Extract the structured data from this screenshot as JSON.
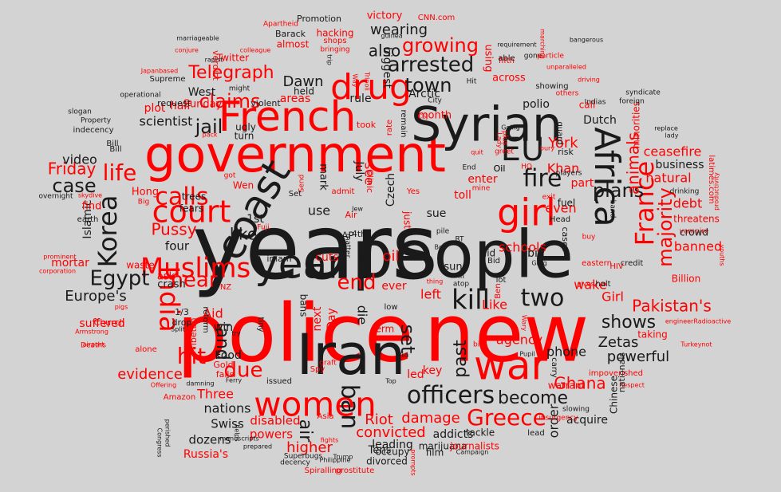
{
  "colors": {
    "background": "#d3d3d3",
    "red": "#ff0000",
    "black": "#1a1a1a"
  },
  "words": [
    {
      "text": "years",
      "color": "black"
    },
    {
      "text": "police",
      "color": "red"
    },
    {
      "text": "new",
      "color": "red"
    },
    {
      "text": "people",
      "color": "black"
    },
    {
      "text": "government",
      "color": "red"
    },
    {
      "text": "Iran",
      "color": "black"
    },
    {
      "text": "Syrian",
      "color": "black"
    },
    {
      "text": "French",
      "color": "red"
    },
    {
      "text": "drug",
      "color": "red"
    },
    {
      "text": "war",
      "color": "red"
    },
    {
      "text": "women",
      "color": "red"
    },
    {
      "text": "year",
      "color": "black"
    },
    {
      "text": "court",
      "color": "red"
    },
    {
      "text": "Muslims",
      "color": "red"
    },
    {
      "text": "Africa",
      "color": "black"
    },
    {
      "text": "EU",
      "color": "black"
    },
    {
      "text": "girl",
      "color": "red"
    },
    {
      "text": "France",
      "color": "red"
    },
    {
      "text": "kill",
      "color": "black"
    },
    {
      "text": "officers",
      "color": "black"
    },
    {
      "text": "Greece",
      "color": "red"
    },
    {
      "text": "India",
      "color": "red"
    },
    {
      "text": "coast",
      "color": "black"
    },
    {
      "text": "fire",
      "color": "black"
    },
    {
      "text": "two",
      "color": "black"
    },
    {
      "text": "ban",
      "color": "black"
    },
    {
      "text": "Korea",
      "color": "black"
    },
    {
      "text": "calls",
      "color": "red"
    },
    {
      "text": "life",
      "color": "red"
    },
    {
      "text": "case",
      "color": "black"
    },
    {
      "text": "arrested",
      "color": "black"
    },
    {
      "text": "growing",
      "color": "red"
    },
    {
      "text": "plans",
      "color": "black"
    },
    {
      "text": "town",
      "color": "black"
    },
    {
      "text": "Egypt",
      "color": "black"
    },
    {
      "text": "hit",
      "color": "red"
    },
    {
      "text": "end",
      "color": "red"
    },
    {
      "text": "near",
      "color": "red"
    },
    {
      "text": "due",
      "color": "red"
    },
    {
      "text": "jail",
      "color": "black"
    },
    {
      "text": "claims",
      "color": "red"
    },
    {
      "text": "Telegraph",
      "color": "red"
    },
    {
      "text": "majority",
      "color": "red"
    },
    {
      "text": "Pakistan's",
      "color": "red"
    },
    {
      "text": "shows",
      "color": "black"
    },
    {
      "text": "become",
      "color": "black"
    },
    {
      "text": "land",
      "color": "black"
    },
    {
      "text": "set",
      "color": "black"
    },
    {
      "text": "past",
      "color": "black"
    },
    {
      "text": "air",
      "color": "black"
    },
    {
      "text": "Friday",
      "color": "red"
    },
    {
      "text": "wearing",
      "color": "black"
    },
    {
      "text": "also",
      "color": "black"
    },
    {
      "text": "like",
      "color": "black"
    },
    {
      "text": "Europe's",
      "color": "black"
    },
    {
      "text": "Zetas",
      "color": "black"
    },
    {
      "text": "Pussy",
      "color": "red"
    },
    {
      "text": "animals",
      "color": "red"
    },
    {
      "text": "evidence",
      "color": "red"
    },
    {
      "text": "powerful",
      "color": "black"
    },
    {
      "text": "Ghana",
      "color": "red"
    },
    {
      "text": "damage",
      "color": "red"
    },
    {
      "text": "convicted",
      "color": "red"
    },
    {
      "text": "higher",
      "color": "red"
    },
    {
      "text": "nations",
      "color": "black"
    },
    {
      "text": "Riot",
      "color": "red"
    },
    {
      "text": "video",
      "color": "black"
    },
    {
      "text": "scientist",
      "color": "black"
    },
    {
      "text": "Dawn",
      "color": "black"
    },
    {
      "text": "wake",
      "color": "red"
    },
    {
      "text": "York",
      "color": "red"
    },
    {
      "text": "Khan",
      "color": "red"
    },
    {
      "text": "banned",
      "color": "red"
    },
    {
      "text": "ceasefire",
      "color": "red"
    },
    {
      "text": "natural",
      "color": "red"
    },
    {
      "text": "debt",
      "color": "red"
    },
    {
      "text": "business",
      "color": "black"
    },
    {
      "text": "even",
      "color": "red"
    },
    {
      "text": "part",
      "color": "red"
    },
    {
      "text": "schools",
      "color": "red"
    },
    {
      "text": "phone",
      "color": "black"
    },
    {
      "text": "agency",
      "color": "red"
    },
    {
      "text": "Girl",
      "color": "red"
    },
    {
      "text": "Like",
      "color": "red"
    },
    {
      "text": "Three",
      "color": "red"
    },
    {
      "text": "dozens",
      "color": "black"
    },
    {
      "text": "Swiss",
      "color": "black"
    },
    {
      "text": "disabled",
      "color": "red"
    },
    {
      "text": "powers",
      "color": "red"
    },
    {
      "text": "Russia's",
      "color": "red"
    },
    {
      "text": "leading",
      "color": "black"
    },
    {
      "text": "addicts",
      "color": "black"
    },
    {
      "text": "order",
      "color": "black"
    },
    {
      "text": "acquire",
      "color": "black"
    },
    {
      "text": "Food",
      "color": "black"
    },
    {
      "text": "Aid",
      "color": "red"
    },
    {
      "text": "win",
      "color": "black"
    },
    {
      "text": "left",
      "color": "red"
    },
    {
      "text": "ever",
      "color": "red"
    },
    {
      "text": "oil",
      "color": "red"
    },
    {
      "text": "cuts",
      "color": "red"
    },
    {
      "text": "use",
      "color": "black"
    },
    {
      "text": "sue",
      "color": "black"
    },
    {
      "text": "enter",
      "color": "red"
    },
    {
      "text": "toll",
      "color": "red"
    },
    {
      "text": "see",
      "color": "red"
    },
    {
      "text": "Czech",
      "color": "black"
    },
    {
      "text": "July",
      "color": "black"
    },
    {
      "text": "mark",
      "color": "black"
    },
    {
      "text": "1st",
      "color": "black"
    },
    {
      "text": "four",
      "color": "black"
    },
    {
      "text": "crash",
      "color": "black"
    },
    {
      "text": "ask",
      "color": "red"
    },
    {
      "text": "suffered",
      "color": "red"
    },
    {
      "text": "mortar",
      "color": "red"
    },
    {
      "text": "Islamic",
      "color": "black"
    },
    {
      "text": "Sunday",
      "color": "red"
    },
    {
      "text": "plot",
      "color": "red"
    },
    {
      "text": "half",
      "color": "red"
    },
    {
      "text": "areas",
      "color": "red"
    },
    {
      "text": "held",
      "color": "black"
    },
    {
      "text": "rule",
      "color": "black"
    },
    {
      "text": "West",
      "color": "black"
    },
    {
      "text": "Arctic",
      "color": "black"
    },
    {
      "text": "polio",
      "color": "black"
    },
    {
      "text": "Dutch",
      "color": "black"
    },
    {
      "text": "call",
      "color": "red"
    },
    {
      "text": "across",
      "color": "red"
    },
    {
      "text": "minorities",
      "color": "red"
    },
    {
      "text": "biggest",
      "color": "black"
    },
    {
      "text": "month",
      "color": "red"
    },
    {
      "text": "using",
      "color": "red"
    },
    {
      "text": "victory",
      "color": "red"
    },
    {
      "text": "hacking",
      "color": "red"
    },
    {
      "text": "almost",
      "color": "red"
    },
    {
      "text": "Barack",
      "color": "black"
    },
    {
      "text": "Twitter",
      "color": "red"
    },
    {
      "text": "verdict",
      "color": "red"
    },
    {
      "text": "Promotion",
      "color": "black"
    },
    {
      "text": "CNN.com",
      "color": "red"
    },
    {
      "text": "Apartheid",
      "color": "red"
    },
    {
      "text": "fifth",
      "color": "red"
    },
    {
      "text": "shops",
      "color": "red"
    },
    {
      "text": "bringing",
      "color": "red"
    },
    {
      "text": "able",
      "color": "black"
    },
    {
      "text": "gone",
      "color": "black"
    },
    {
      "text": "particle",
      "color": "red"
    },
    {
      "text": "marching",
      "color": "red"
    },
    {
      "text": "requirement",
      "color": "black"
    },
    {
      "text": "bangerous",
      "color": "black"
    },
    {
      "text": "unparalleled",
      "color": "red"
    },
    {
      "text": "showing",
      "color": "black"
    },
    {
      "text": "driving",
      "color": "red"
    },
    {
      "text": "others",
      "color": "red"
    },
    {
      "text": "Indias",
      "color": "black"
    },
    {
      "text": "syndicate",
      "color": "black"
    },
    {
      "text": "foreign",
      "color": "black"
    },
    {
      "text": "replace",
      "color": "black"
    },
    {
      "text": "lady",
      "color": "black"
    },
    {
      "text": "latimes.com",
      "color": "red"
    },
    {
      "text": "productivity",
      "color": "red"
    },
    {
      "text": "drinking",
      "color": "black"
    },
    {
      "text": "threatens",
      "color": "red"
    },
    {
      "text": "vampire",
      "color": "red"
    },
    {
      "text": "crowd",
      "color": "black"
    },
    {
      "text": "Billion",
      "color": "red"
    },
    {
      "text": "youths",
      "color": "red"
    },
    {
      "text": "engineerRadioactive",
      "color": "red"
    },
    {
      "text": "Turkeynot",
      "color": "red"
    },
    {
      "text": "taking",
      "color": "red"
    },
    {
      "text": "Respect",
      "color": "red"
    },
    {
      "text": "impoverished",
      "color": "red"
    },
    {
      "text": "warrant",
      "color": "red"
    },
    {
      "text": "nationals",
      "color": "black"
    },
    {
      "text": "Chinese",
      "color": "black"
    },
    {
      "text": "slowing",
      "color": "black"
    },
    {
      "text": "insurgency",
      "color": "red"
    },
    {
      "text": "lead",
      "color": "black"
    },
    {
      "text": "tackle",
      "color": "black"
    },
    {
      "text": "marijuana",
      "color": "black"
    },
    {
      "text": "journalists",
      "color": "red"
    },
    {
      "text": "Campaign",
      "color": "black"
    },
    {
      "text": "Tens",
      "color": "black"
    },
    {
      "text": "occupy",
      "color": "black"
    },
    {
      "text": "film",
      "color": "black"
    },
    {
      "text": "divorced",
      "color": "black"
    },
    {
      "text": "prostitute",
      "color": "red"
    },
    {
      "text": "Spiralling",
      "color": "red"
    },
    {
      "text": "Philippine",
      "color": "black"
    },
    {
      "text": "decency",
      "color": "black"
    },
    {
      "text": "Superbugs",
      "color": "black"
    },
    {
      "text": "prepared",
      "color": "black"
    },
    {
      "text": "manuscripts",
      "color": "black"
    },
    {
      "text": "Congress",
      "color": "black"
    },
    {
      "text": "perished",
      "color": "black"
    },
    {
      "text": "Amazon",
      "color": "red"
    },
    {
      "text": "Offering",
      "color": "red"
    },
    {
      "text": "Gold",
      "color": "red"
    },
    {
      "text": "falls",
      "color": "red"
    },
    {
      "text": "Tibetan",
      "color": "red"
    },
    {
      "text": "Church",
      "color": "red"
    },
    {
      "text": "alone",
      "color": "red"
    },
    {
      "text": "Deaths",
      "color": "red"
    },
    {
      "text": "airport",
      "color": "red"
    },
    {
      "text": "Armstrong",
      "color": "red"
    },
    {
      "text": "corporation",
      "color": "red"
    },
    {
      "text": "prominent",
      "color": "red"
    },
    {
      "text": "skydive",
      "color": "red"
    },
    {
      "text": "overnight",
      "color": "black"
    },
    {
      "text": "Hong",
      "color": "red"
    },
    {
      "text": "Big",
      "color": "red"
    },
    {
      "text": "Bill",
      "color": "black"
    },
    {
      "text": "find",
      "color": "red"
    },
    {
      "text": "earth",
      "color": "black"
    },
    {
      "text": "waste",
      "color": "red"
    },
    {
      "text": "fears",
      "color": "black"
    },
    {
      "text": "trees",
      "color": "black"
    },
    {
      "text": "indecency",
      "color": "black"
    },
    {
      "text": "Property",
      "color": "black"
    },
    {
      "text": "slogan",
      "color": "black"
    },
    {
      "text": "operational",
      "color": "black"
    },
    {
      "text": "request",
      "color": "black"
    },
    {
      "text": "Supreme",
      "color": "black"
    },
    {
      "text": "rapist",
      "color": "black"
    },
    {
      "text": "colleague",
      "color": "red"
    },
    {
      "text": "conjure",
      "color": "red"
    },
    {
      "text": "Japanbased",
      "color": "red"
    },
    {
      "text": "marriageable",
      "color": "black"
    },
    {
      "text": "guinea",
      "color": "black"
    },
    {
      "text": "violent",
      "color": "black"
    },
    {
      "text": "ugly",
      "color": "black"
    },
    {
      "text": "turn",
      "color": "black"
    },
    {
      "text": "might",
      "color": "black"
    },
    {
      "text": "remain",
      "color": "black"
    },
    {
      "text": "Hit",
      "color": "black"
    },
    {
      "text": "Oil",
      "color": "black"
    },
    {
      "text": "took",
      "color": "red"
    },
    {
      "text": "rate",
      "color": "red"
    },
    {
      "text": "CSJ",
      "color": "red"
    },
    {
      "text": "City",
      "color": "black"
    },
    {
      "text": "Clinic",
      "color": "red"
    },
    {
      "text": "Send",
      "color": "red"
    },
    {
      "text": "Wen",
      "color": "red"
    },
    {
      "text": "got",
      "color": "red"
    },
    {
      "text": "pack",
      "color": "red"
    },
    {
      "text": "admit",
      "color": "red"
    },
    {
      "text": "Set",
      "color": "black"
    },
    {
      "text": "Yes",
      "color": "red"
    },
    {
      "text": "Air",
      "color": "red"
    },
    {
      "text": "Jew",
      "color": "black"
    },
    {
      "text": "AP",
      "color": "black"
    },
    {
      "text": "4th",
      "color": "black"
    },
    {
      "text": "imam",
      "color": "black"
    },
    {
      "text": "matter",
      "color": "black"
    },
    {
      "text": "rich",
      "color": "black"
    },
    {
      "text": "just",
      "color": "red"
    },
    {
      "text": "pile",
      "color": "black"
    },
    {
      "text": "RT",
      "color": "black"
    },
    {
      "text": "Boy",
      "color": "black"
    },
    {
      "text": "sun",
      "color": "black"
    },
    {
      "text": "Bid",
      "color": "black"
    },
    {
      "text": "aid",
      "color": "black"
    },
    {
      "text": "big",
      "color": "black"
    },
    {
      "text": "Greg",
      "color": "black"
    },
    {
      "text": "pigs",
      "color": "red"
    },
    {
      "text": "Fuji",
      "color": "red"
    },
    {
      "text": "NZ",
      "color": "red"
    },
    {
      "text": "1/3",
      "color": "black"
    },
    {
      "text": "drop",
      "color": "black"
    },
    {
      "text": "Split",
      "color": "black"
    },
    {
      "text": "reform",
      "color": "black"
    },
    {
      "text": "try",
      "color": "black"
    },
    {
      "text": "tiny",
      "color": "black"
    },
    {
      "text": "bans",
      "color": "black"
    },
    {
      "text": "next",
      "color": "red"
    },
    {
      "text": "Day",
      "color": "red"
    },
    {
      "text": "die",
      "color": "black"
    },
    {
      "text": "term",
      "color": "red"
    },
    {
      "text": "low",
      "color": "black"
    },
    {
      "text": "via",
      "color": "black"
    },
    {
      "text": "Top",
      "color": "black"
    },
    {
      "text": "Spy",
      "color": "red"
    },
    {
      "text": "graft",
      "color": "red"
    },
    {
      "text": "issued",
      "color": "black"
    },
    {
      "text": "Ferry",
      "color": "black"
    },
    {
      "text": "damning",
      "color": "black"
    },
    {
      "text": "helps",
      "color": "black"
    },
    {
      "text": "fights",
      "color": "red"
    },
    {
      "text": "Asia",
      "color": "red"
    },
    {
      "text": "Trump",
      "color": "black"
    },
    {
      "text": "prompts",
      "color": "red"
    },
    {
      "text": "led",
      "color": "red"
    },
    {
      "text": "key",
      "color": "red"
    },
    {
      "text": "ill",
      "color": "black"
    },
    {
      "text": "atop",
      "color": "black"
    },
    {
      "text": "lot",
      "color": "black"
    },
    {
      "text": "thing",
      "color": "red"
    },
    {
      "text": "Ben",
      "color": "red"
    },
    {
      "text": "Wary",
      "color": "red"
    },
    {
      "text": "Pupil",
      "color": "black"
    },
    {
      "text": "carry",
      "color": "black"
    },
    {
      "text": "credit",
      "color": "black"
    },
    {
      "text": "HIV",
      "color": "red"
    },
    {
      "text": "eastern",
      "color": "red"
    },
    {
      "text": "buy",
      "color": "red"
    },
    {
      "text": "gives",
      "color": "red"
    },
    {
      "text": "halt",
      "color": "black"
    },
    {
      "text": "cases",
      "color": "black"
    },
    {
      "text": "Head",
      "color": "black"
    },
    {
      "text": "fuel",
      "color": "black"
    },
    {
      "text": "exit",
      "color": "red"
    },
    {
      "text": "players",
      "color": "black"
    },
    {
      "text": "band",
      "color": "black"
    },
    {
      "text": "risk",
      "color": "black"
    },
    {
      "text": "guard",
      "color": "black"
    },
    {
      "text": "HQ",
      "color": "red"
    },
    {
      "text": "End",
      "color": "black"
    },
    {
      "text": "Oil",
      "color": "black"
    },
    {
      "text": "mine",
      "color": "red"
    },
    {
      "text": "bury",
      "color": "red"
    },
    {
      "text": "greet",
      "color": "red"
    },
    {
      "text": "Lady",
      "color": "red"
    },
    {
      "text": "Going",
      "color": "black"
    },
    {
      "text": "quit",
      "color": "red"
    },
    {
      "text": "plus",
      "color": "red"
    },
    {
      "text": "Tripoli",
      "color": "red"
    },
    {
      "text": "Way",
      "color": "red"
    },
    {
      "text": "trip",
      "color": "black"
    },
    {
      "text": "bid",
      "color": "red"
    },
    {
      "text": "Bill",
      "color": "black"
    }
  ]
}
